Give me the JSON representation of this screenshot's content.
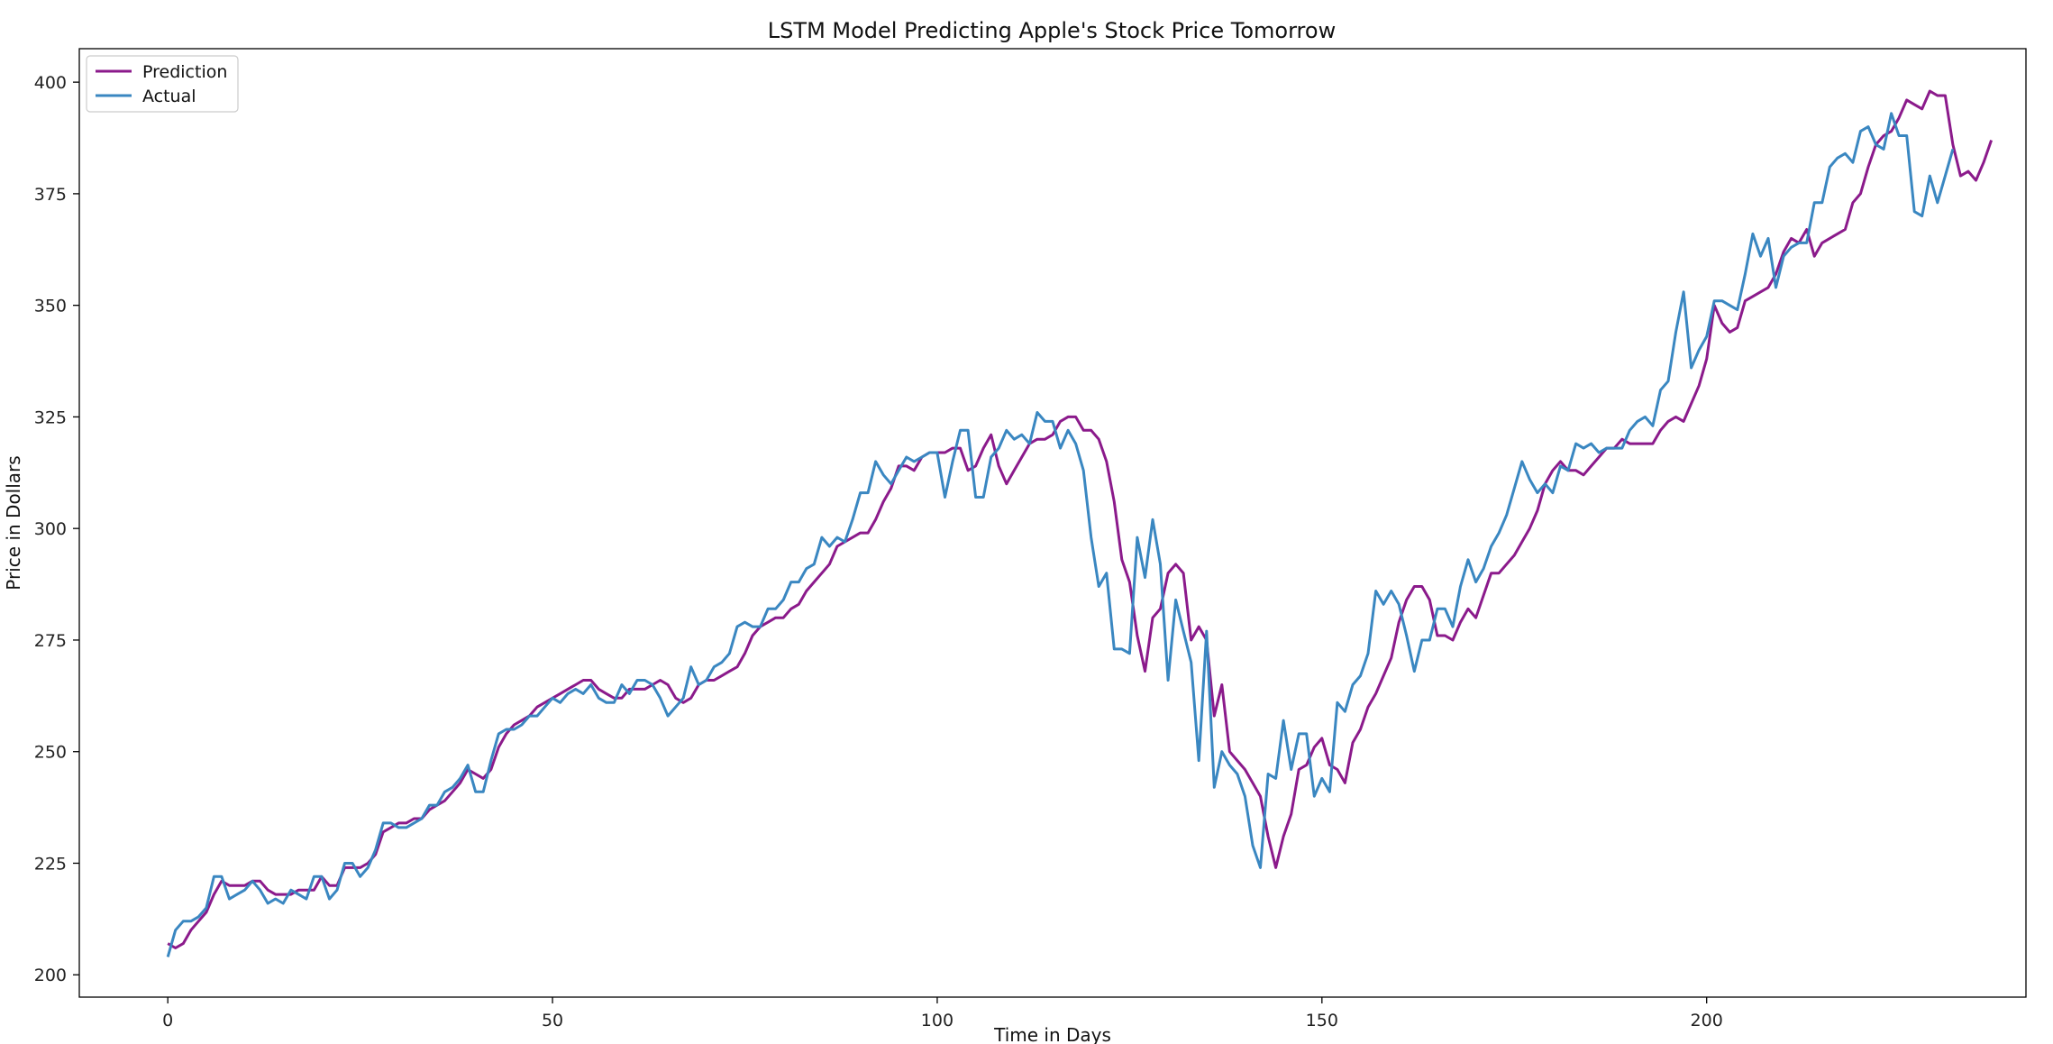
{
  "chart_data": {
    "type": "line",
    "title": "LSTM Model Predicting Apple's Stock Price Tomorrow",
    "xlabel": "Time in Days",
    "ylabel": "Price in Dollars",
    "xlim": [
      -11.5,
      241.5
    ],
    "ylim": [
      195,
      407.5
    ],
    "xticks": [
      0,
      50,
      100,
      150,
      200
    ],
    "yticks": [
      200,
      225,
      250,
      275,
      300,
      325,
      350,
      375,
      400
    ],
    "grid": false,
    "legend_position": "upper-left",
    "series": [
      {
        "name": "Prediction",
        "color": "#8b1a8b",
        "x_start": 0,
        "values": [
          207,
          206,
          207,
          210,
          212,
          214,
          218,
          221,
          220,
          220,
          220,
          221,
          221,
          219,
          218,
          218,
          218,
          219,
          219,
          219,
          222,
          220,
          220,
          224,
          224,
          224,
          225,
          227,
          232,
          233,
          234,
          234,
          235,
          235,
          237,
          238,
          239,
          241,
          243,
          246,
          245,
          244,
          246,
          251,
          254,
          256,
          257,
          258,
          260,
          261,
          262,
          263,
          264,
          265,
          266,
          266,
          264,
          263,
          262,
          262,
          264,
          264,
          264,
          265,
          266,
          265,
          262,
          261,
          262,
          265,
          266,
          266,
          267,
          268,
          269,
          272,
          276,
          278,
          279,
          280,
          280,
          282,
          283,
          286,
          288,
          290,
          292,
          296,
          297,
          298,
          299,
          299,
          302,
          306,
          309,
          314,
          314,
          313,
          316,
          317,
          317,
          317,
          318,
          318,
          313,
          314,
          318,
          321,
          314,
          310,
          313,
          316,
          319,
          320,
          320,
          321,
          324,
          325,
          325,
          322,
          322,
          320,
          315,
          306,
          293,
          288,
          276,
          268,
          280,
          282,
          290,
          292,
          290,
          275,
          278,
          275,
          258,
          265,
          250,
          248,
          246,
          243,
          240,
          231,
          224,
          231,
          236,
          246,
          247,
          251,
          253,
          247,
          246,
          243,
          252,
          255,
          260,
          263,
          267,
          271,
          279,
          284,
          287,
          287,
          284,
          276,
          276,
          275,
          279,
          282,
          280,
          285,
          290,
          290,
          292,
          294,
          297,
          300,
          304,
          310,
          313,
          315,
          313,
          313,
          312,
          314,
          316,
          318,
          318,
          320,
          319,
          319,
          319,
          319,
          322,
          324,
          325,
          324,
          328,
          332,
          338,
          350,
          346,
          344,
          345,
          351,
          352,
          353,
          354,
          357,
          362,
          365,
          364,
          367,
          361,
          364,
          365,
          366,
          367,
          373,
          375,
          381,
          386,
          388,
          389,
          392,
          396,
          395,
          394,
          398,
          397,
          397,
          386,
          379,
          380,
          378,
          382,
          387
        ]
      },
      {
        "name": "Actual",
        "color": "#3a87c1",
        "x_start": 0,
        "values": [
          204,
          210,
          212,
          212,
          213,
          215,
          222,
          222,
          217,
          218,
          219,
          221,
          219,
          216,
          217,
          216,
          219,
          218,
          217,
          222,
          222,
          217,
          219,
          225,
          225,
          222,
          224,
          228,
          234,
          234,
          233,
          233,
          234,
          235,
          238,
          238,
          241,
          242,
          244,
          247,
          241,
          241,
          248,
          254,
          255,
          255,
          256,
          258,
          258,
          260,
          262,
          261,
          263,
          264,
          263,
          265,
          262,
          261,
          261,
          265,
          263,
          266,
          266,
          265,
          262,
          258,
          260,
          262,
          269,
          265,
          266,
          269,
          270,
          272,
          278,
          279,
          278,
          278,
          282,
          282,
          284,
          288,
          288,
          291,
          292,
          298,
          296,
          298,
          297,
          302,
          308,
          308,
          315,
          312,
          310,
          313,
          316,
          315,
          316,
          317,
          317,
          307,
          315,
          322,
          322,
          307,
          307,
          316,
          318,
          322,
          320,
          321,
          319,
          326,
          324,
          324,
          318,
          322,
          319,
          313,
          298,
          287,
          290,
          273,
          273,
          272,
          298,
          289,
          302,
          292,
          266,
          284,
          277,
          270,
          248,
          277,
          242,
          250,
          247,
          245,
          240,
          229,
          224,
          245,
          244,
          257,
          246,
          254,
          254,
          240,
          244,
          241,
          261,
          259,
          265,
          267,
          272,
          286,
          283,
          286,
          283,
          276,
          268,
          275,
          275,
          282,
          282,
          278,
          287,
          293,
          288,
          291,
          296,
          299,
          303,
          309,
          315,
          311,
          308,
          310,
          308,
          314,
          313,
          319,
          318,
          319,
          317,
          318,
          318,
          318,
          322,
          324,
          325,
          323,
          331,
          333,
          344,
          353,
          336,
          340,
          343,
          351,
          351,
          350,
          349,
          357,
          366,
          361,
          365,
          354,
          361,
          363,
          364,
          364,
          373,
          373,
          381,
          383,
          384,
          382,
          389,
          390,
          386,
          385,
          393,
          388,
          388,
          371,
          370,
          379,
          373,
          379,
          385
        ]
      }
    ]
  }
}
